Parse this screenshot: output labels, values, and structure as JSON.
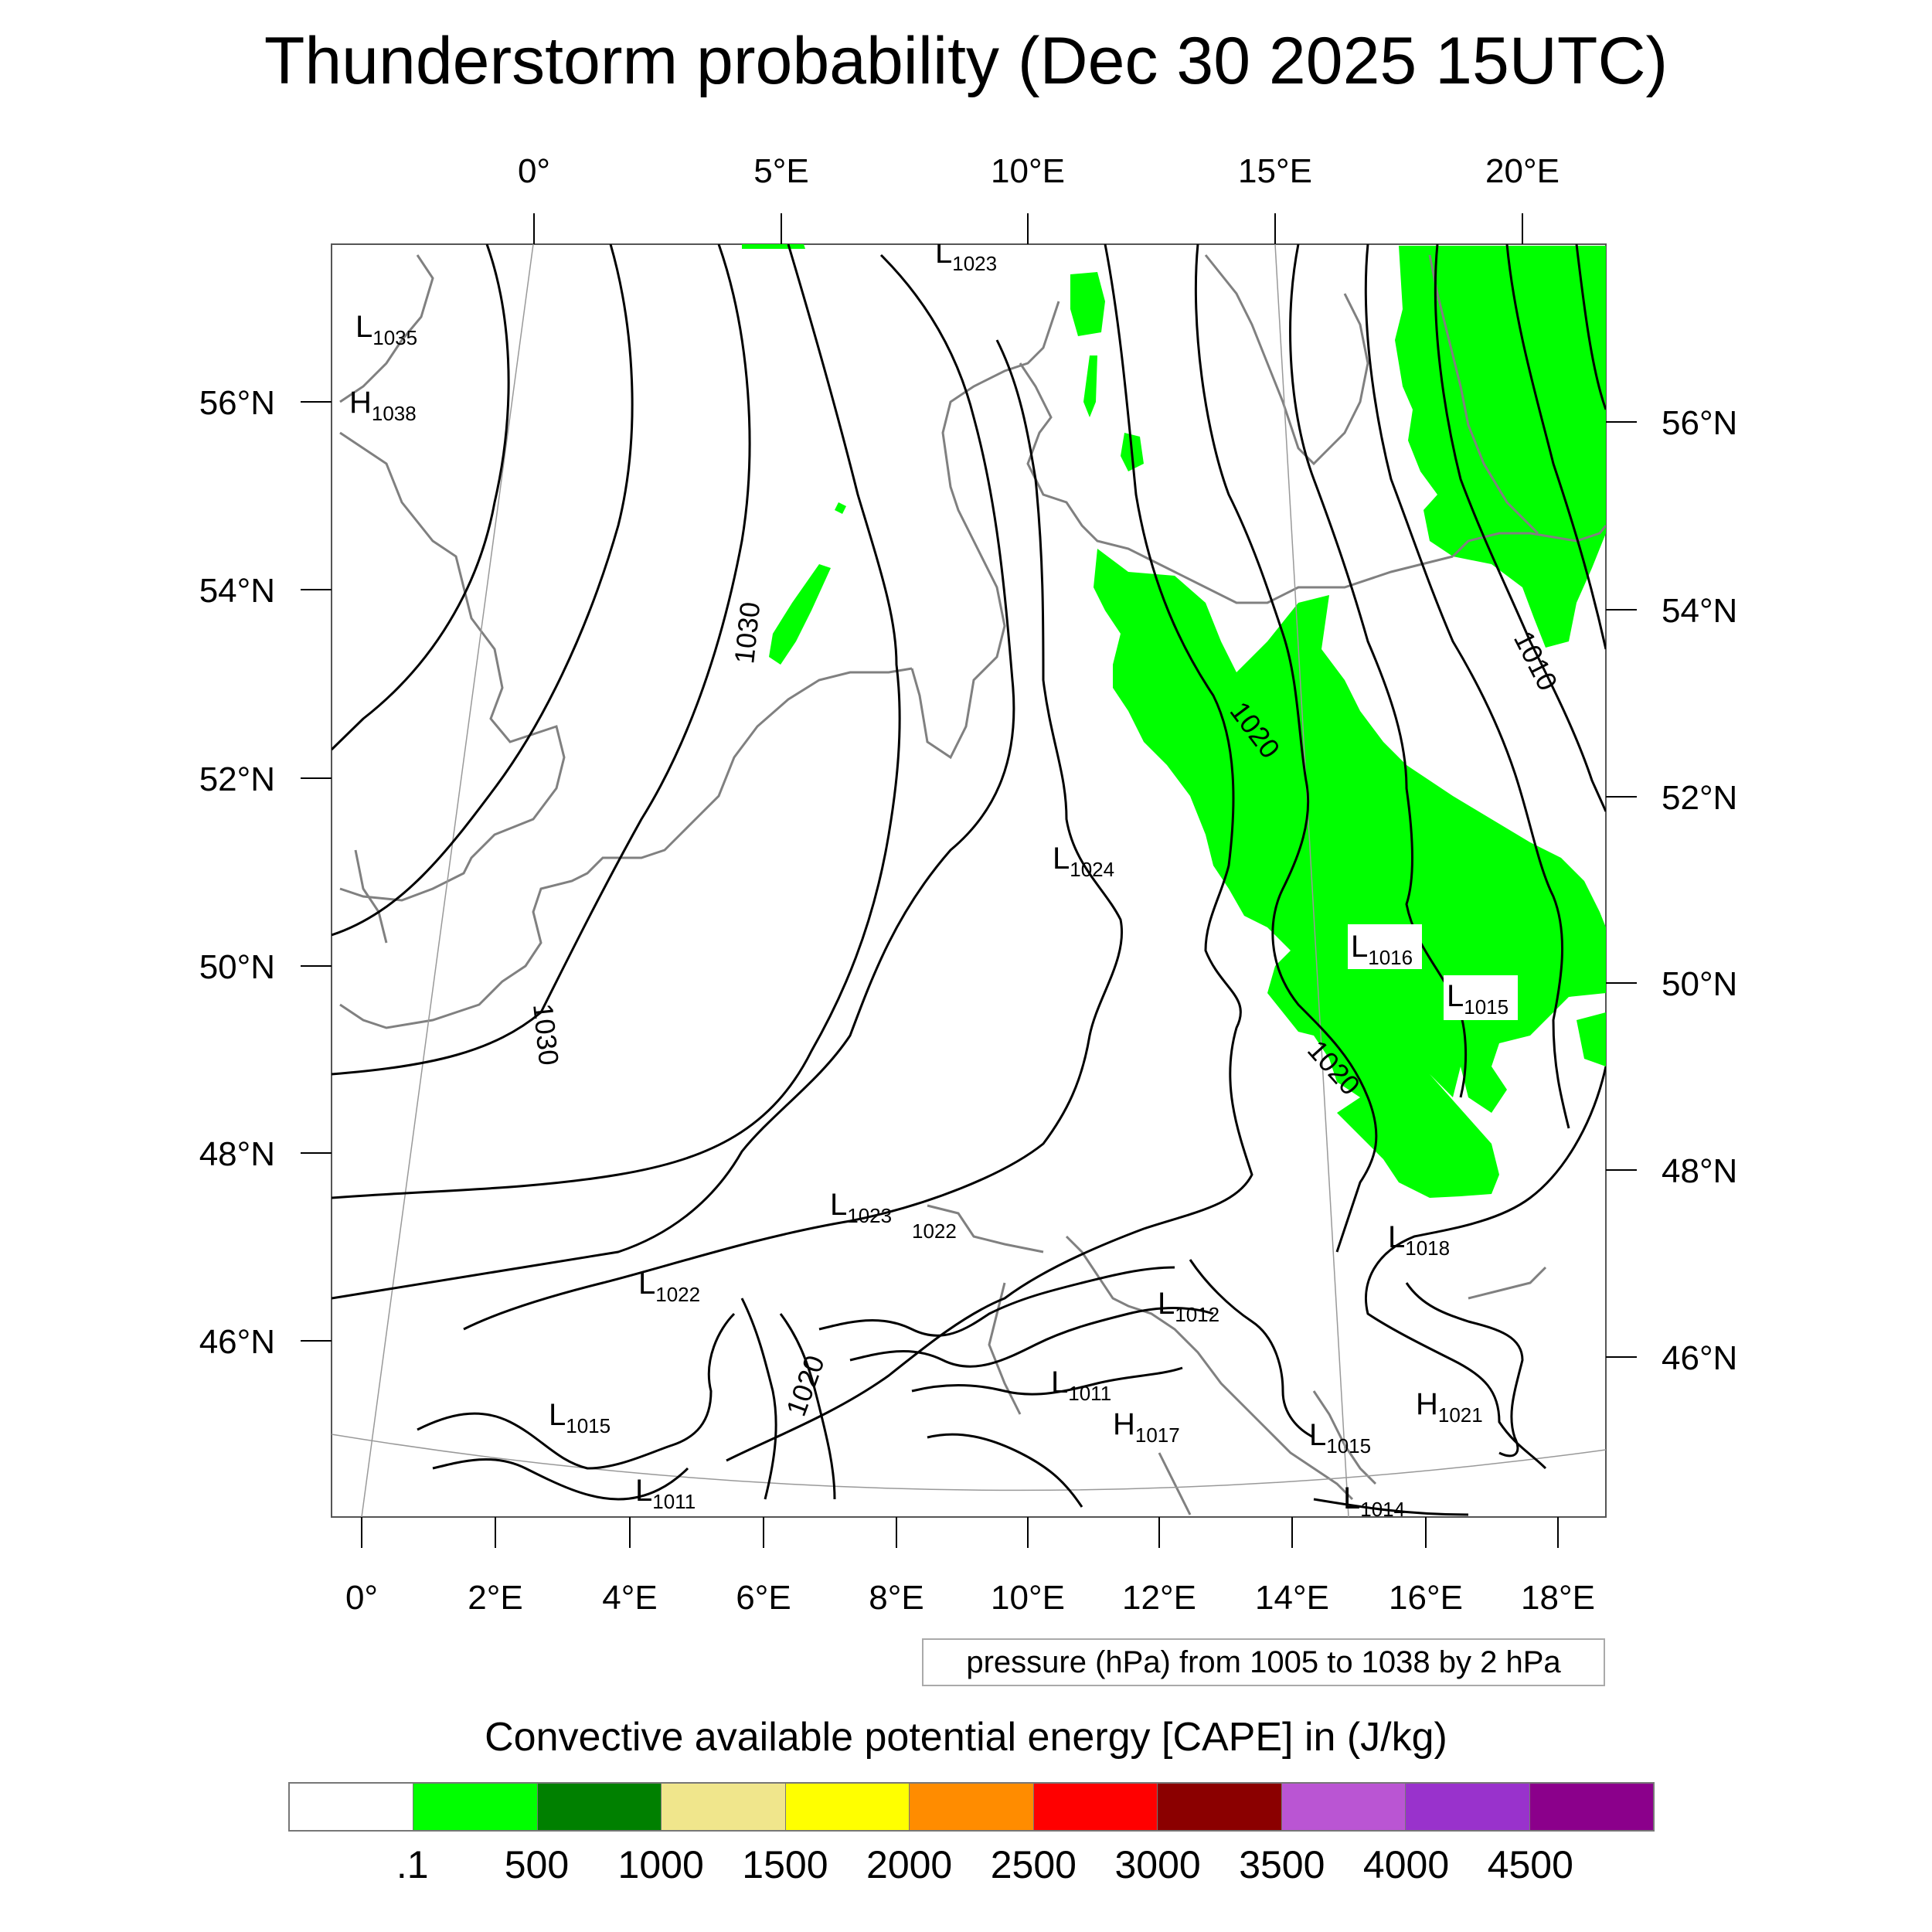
{
  "title": "Thunderstorm probability (Dec 30 2025 15UTC)",
  "top_lon_ticks": [
    "0°",
    "5°E",
    "10°E",
    "15°E",
    "20°E"
  ],
  "bottom_lon_ticks": [
    "0°",
    "2°E",
    "4°E",
    "6°E",
    "8°E",
    "10°E",
    "12°E",
    "14°E",
    "16°E",
    "18°E"
  ],
  "left_lat_ticks": [
    "56°N",
    "54°N",
    "52°N",
    "50°N",
    "48°N",
    "46°N"
  ],
  "right_lat_ticks": [
    "56°N",
    "54°N",
    "52°N",
    "50°N",
    "48°N",
    "46°N"
  ],
  "contour_labels": [
    "1030",
    "1030",
    "1020",
    "1020",
    "1010",
    "1020"
  ],
  "pressure_centers": [
    {
      "type": "L",
      "value": "1035"
    },
    {
      "type": "H",
      "value": "1038"
    },
    {
      "type": "L",
      "value": "1023"
    },
    {
      "type": "L",
      "value": "1024"
    },
    {
      "type": "L",
      "value": "1016"
    },
    {
      "type": "L",
      "value": "1015"
    },
    {
      "type": "L",
      "value": "1023"
    },
    {
      "type": "",
      "value": "1022"
    },
    {
      "type": "L",
      "value": "1018"
    },
    {
      "type": "L",
      "value": "1022"
    },
    {
      "type": "L",
      "value": "1012"
    },
    {
      "type": "L",
      "value": "1015"
    },
    {
      "type": "L",
      "value": "1011"
    },
    {
      "type": "H",
      "value": "1017"
    },
    {
      "type": "H",
      "value": "1021"
    },
    {
      "type": "L",
      "value": "1015"
    },
    {
      "type": "L",
      "value": "1011"
    },
    {
      "type": "L",
      "value": "1014"
    }
  ],
  "info_box": "pressure (hPa) from 1005 to 1038 by 2 hPa",
  "colorbar": {
    "title": "Convective available potential energy [CAPE] in (J/kg)",
    "colors": [
      "#ffffff",
      "#00ff00",
      "#008000",
      "#f0e68c",
      "#ffff00",
      "#ff8c00",
      "#ff0000",
      "#8b0000",
      "#ba55d3",
      "#9932cc",
      "#8b008b"
    ],
    "labels": [
      ".1",
      "500",
      "1000",
      "1500",
      "2000",
      "2500",
      "3000",
      "3500",
      "4000",
      "4500"
    ]
  },
  "colors": {
    "cape_fill": "#00ff00",
    "coastline": "#808080",
    "isobar": "#000000",
    "gridline": "#999999"
  }
}
